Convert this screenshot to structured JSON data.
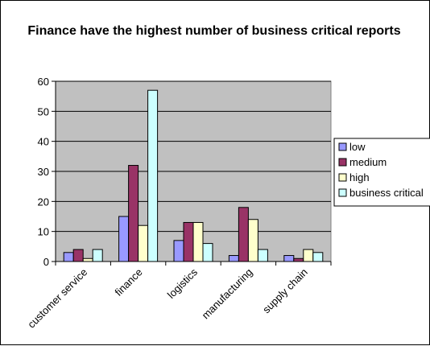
{
  "chart_data": {
    "type": "bar",
    "title": "Finance have the highest number of business critical reports",
    "xlabel": "",
    "ylabel": "",
    "categories": [
      "customer service",
      "finance",
      "logistics",
      "manufacturing",
      "supply chain"
    ],
    "series": [
      {
        "name": "low",
        "values": [
          3,
          15,
          7,
          2,
          2
        ],
        "color": "#9999FF"
      },
      {
        "name": "medium",
        "values": [
          4,
          32,
          13,
          18,
          1
        ],
        "color": "#993366"
      },
      {
        "name": "high",
        "values": [
          1,
          12,
          13,
          14,
          4
        ],
        "color": "#FFFFCC"
      },
      {
        "name": "business critical",
        "values": [
          4,
          57,
          6,
          4,
          3
        ],
        "color": "#CCFFFF"
      }
    ],
    "ylim": [
      0,
      60
    ],
    "yticks": [
      0,
      10,
      20,
      30,
      40,
      50,
      60
    ],
    "grid": true,
    "plot_background": "#C0C0C0",
    "legend_position": "right"
  }
}
